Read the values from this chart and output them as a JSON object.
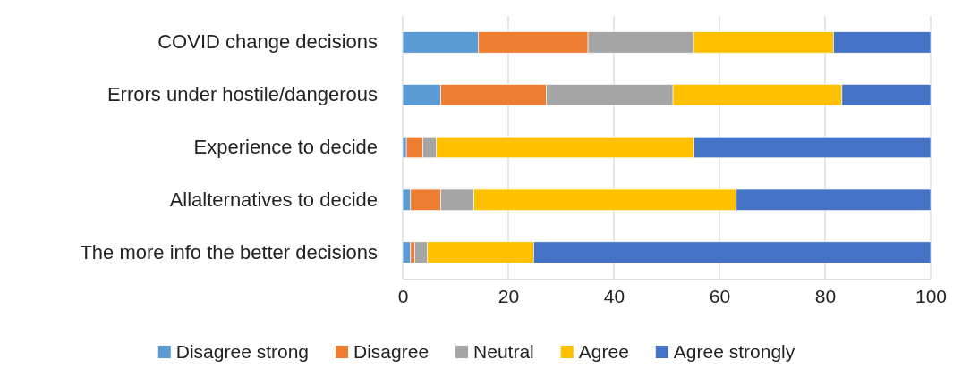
{
  "chart_data": {
    "type": "bar",
    "orientation": "horizontal",
    "stacked": true,
    "categories": [
      "COVID change decisions",
      "Errors under hostile/dangerous",
      "Experience to decide",
      "Allalternatives to decide",
      "The more info the better decisions"
    ],
    "series": [
      {
        "name": "Disagree strong",
        "color": "#5b9bd5",
        "values": [
          14.3,
          7.2,
          0.7,
          1.5,
          1.5
        ]
      },
      {
        "name": "Disagree",
        "color": "#ed7d31",
        "values": [
          20.8,
          20.0,
          3.1,
          5.7,
          0.8
        ]
      },
      {
        "name": "Neutral",
        "color": "#a5a5a5",
        "values": [
          20.0,
          24.0,
          2.6,
          6.3,
          2.4
        ]
      },
      {
        "name": "Agree",
        "color": "#ffc000",
        "values": [
          26.5,
          32.0,
          48.8,
          49.7,
          20.1
        ]
      },
      {
        "name": "Agree strongly",
        "color": "#4472c4",
        "values": [
          18.4,
          16.8,
          44.8,
          36.8,
          75.2
        ]
      }
    ],
    "xlim": [
      0,
      100
    ],
    "xticks": [
      0,
      20,
      40,
      60,
      80,
      100
    ],
    "grid": "x",
    "legend": "bottom"
  }
}
